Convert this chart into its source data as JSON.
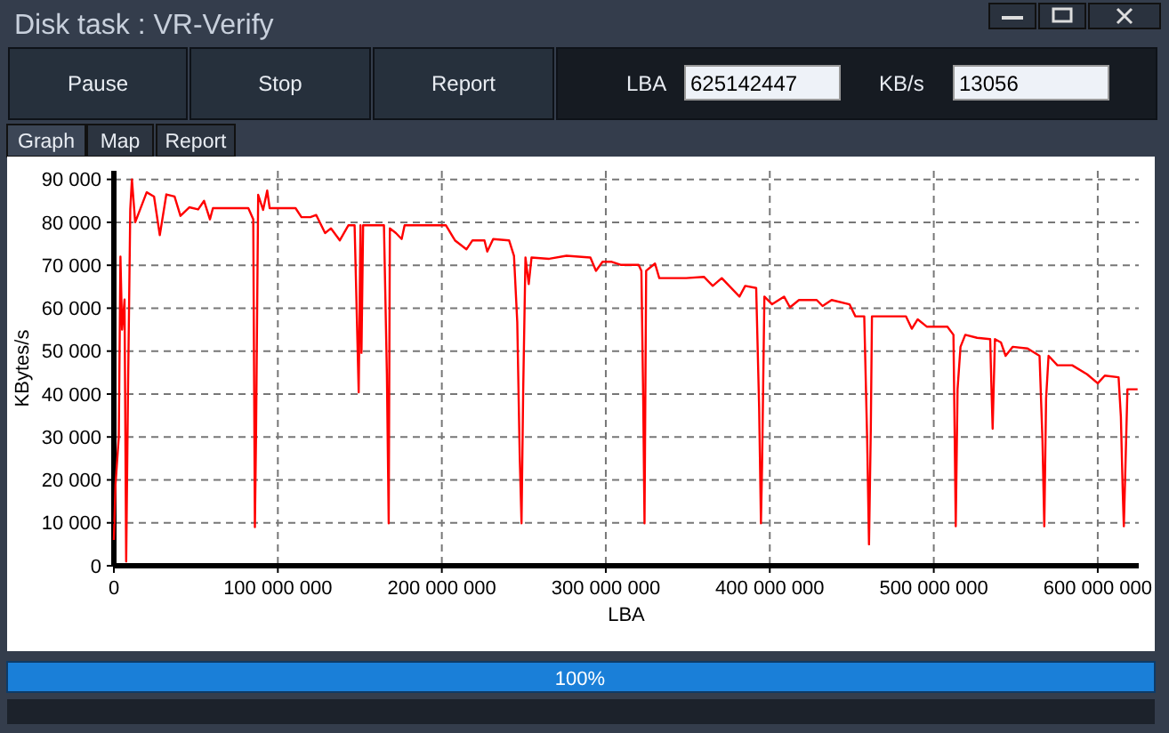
{
  "chart_data": {
    "type": "line",
    "title": "Disk task : VR-Verify",
    "xlabel": "LBA",
    "ylabel": "KBytes/s",
    "xlim": [
      0,
      625000000
    ],
    "ylim": [
      0,
      92000
    ],
    "xticks": [
      0,
      {
        "value": 100000000,
        "label": "100 000 000"
      },
      {
        "value": 200000000,
        "label": "200 000 000"
      },
      {
        "value": 300000000,
        "label": "300 000 000"
      },
      {
        "value": 400000000,
        "label": "400 000 000"
      },
      {
        "value": 500000000,
        "label": "500 000 000"
      },
      {
        "value": 600000000,
        "label": "600 000 000"
      }
    ],
    "yticks": [
      0,
      {
        "value": 10000,
        "label": "10 000"
      },
      {
        "value": 20000,
        "label": "20 000"
      },
      {
        "value": 30000,
        "label": "30 000"
      },
      {
        "value": 40000,
        "label": "40 000"
      },
      {
        "value": 50000,
        "label": "50 000"
      },
      {
        "value": 60000,
        "label": "60 000"
      },
      {
        "value": 70000,
        "label": "70 000"
      },
      {
        "value": 80000,
        "label": "80 000"
      },
      {
        "value": 90000,
        "label": "90 000"
      }
    ],
    "grid": true,
    "line_style": "solid",
    "annotations": [
      "Pause",
      "Stop",
      "Report",
      "LBA",
      "625142447",
      "KB/s",
      "13056",
      "Graph",
      "Map",
      "Report",
      "100%"
    ],
    "series": [
      {
        "color": "#ff0000",
        "x": [
          0,
          1000000,
          3000000,
          4000000,
          5000000,
          6500000,
          7500000,
          8600000,
          10000000,
          11000000,
          13000000,
          17000000,
          20000000,
          24500000,
          28000000,
          32000000,
          37000000,
          40600000,
          46000000,
          51400000,
          55000000,
          58600000,
          60400000,
          82000000,
          85000000,
          86000000,
          86700000,
          88000000,
          91000000,
          93500000,
          95000000,
          110800000,
          114400000,
          119800000,
          123400000,
          128800000,
          132400000,
          137800000,
          143000000,
          146800000,
          149300000,
          150400000,
          151000000,
          152000000,
          164700000,
          166500000,
          167600000,
          168300000,
          172000000,
          175500000,
          177300000,
          197000000,
          202500000,
          208000000,
          215000000,
          218700000,
          226000000,
          227700000,
          231300000,
          241000000,
          244000000,
          246000000,
          247500000,
          248600000,
          249600000,
          251000000,
          253000000,
          254700000,
          265500000,
          276000000,
          290600000,
          294000000,
          298000000,
          303600000,
          309000000,
          320000000,
          321700000,
          322800000,
          323600000,
          324600000,
          330000000,
          332600000,
          349000000,
          359800000,
          365200000,
          370700000,
          381500000,
          385000000,
          391700000,
          393500000,
          394600000,
          395300000,
          396700000,
          401400000,
          408700000,
          412300000,
          417800000,
          428600000,
          432200000,
          437700000,
          448600000,
          452200000,
          457600000,
          459400000,
          460500000,
          461600000,
          462300000,
          483000000,
          486600000,
          490200000,
          495700000,
          508300000,
          512000000,
          512700000,
          513400000,
          514500000,
          516300000,
          519200000,
          526400000,
          534400000,
          535100000,
          535900000,
          537300000,
          541000000,
          543800000,
          548200000,
          557200000,
          564500000,
          566300000,
          567400000,
          568500000,
          570000000,
          575400000,
          584400000,
          593500000,
          600000000,
          604300000,
          612700000,
          614100000,
          615200000,
          615900000,
          617000000,
          618100000,
          624300000
        ],
        "values": [
          6000,
          19000,
          30000,
          72000,
          55000,
          62000,
          1000,
          40000,
          83000,
          90000,
          80000,
          84000,
          87000,
          86000,
          77000,
          86500,
          86000,
          81500,
          83500,
          83000,
          85000,
          80700,
          83300,
          83300,
          80700,
          9000,
          30500,
          86400,
          82900,
          87400,
          83300,
          83300,
          81200,
          81200,
          81700,
          77500,
          78600,
          75800,
          79300,
          79300,
          40400,
          79300,
          49600,
          79300,
          79300,
          44600,
          9900,
          78600,
          77500,
          76100,
          79300,
          79300,
          79300,
          75800,
          73700,
          75800,
          75800,
          73200,
          76100,
          75800,
          72200,
          56700,
          25500,
          9900,
          40400,
          71800,
          65600,
          71800,
          71500,
          72200,
          71800,
          68700,
          70800,
          70800,
          70100,
          70100,
          68700,
          39000,
          9900,
          68700,
          70400,
          67000,
          67000,
          67300,
          65200,
          67000,
          62700,
          65200,
          64700,
          36800,
          9900,
          23400,
          62700,
          60900,
          62700,
          60200,
          61900,
          61900,
          60500,
          61900,
          60900,
          58100,
          58100,
          29000,
          5000,
          31900,
          58100,
          58100,
          55200,
          57400,
          55700,
          55700,
          53800,
          31900,
          9200,
          41100,
          51000,
          53800,
          53100,
          52800,
          42500,
          31900,
          52800,
          52000,
          48900,
          51000,
          50600,
          48900,
          29000,
          9200,
          39000,
          48900,
          46700,
          46700,
          44600,
          42500,
          44300,
          43900,
          34700,
          17700,
          9200,
          24800,
          41100,
          41100
        ]
      }
    ]
  }
}
